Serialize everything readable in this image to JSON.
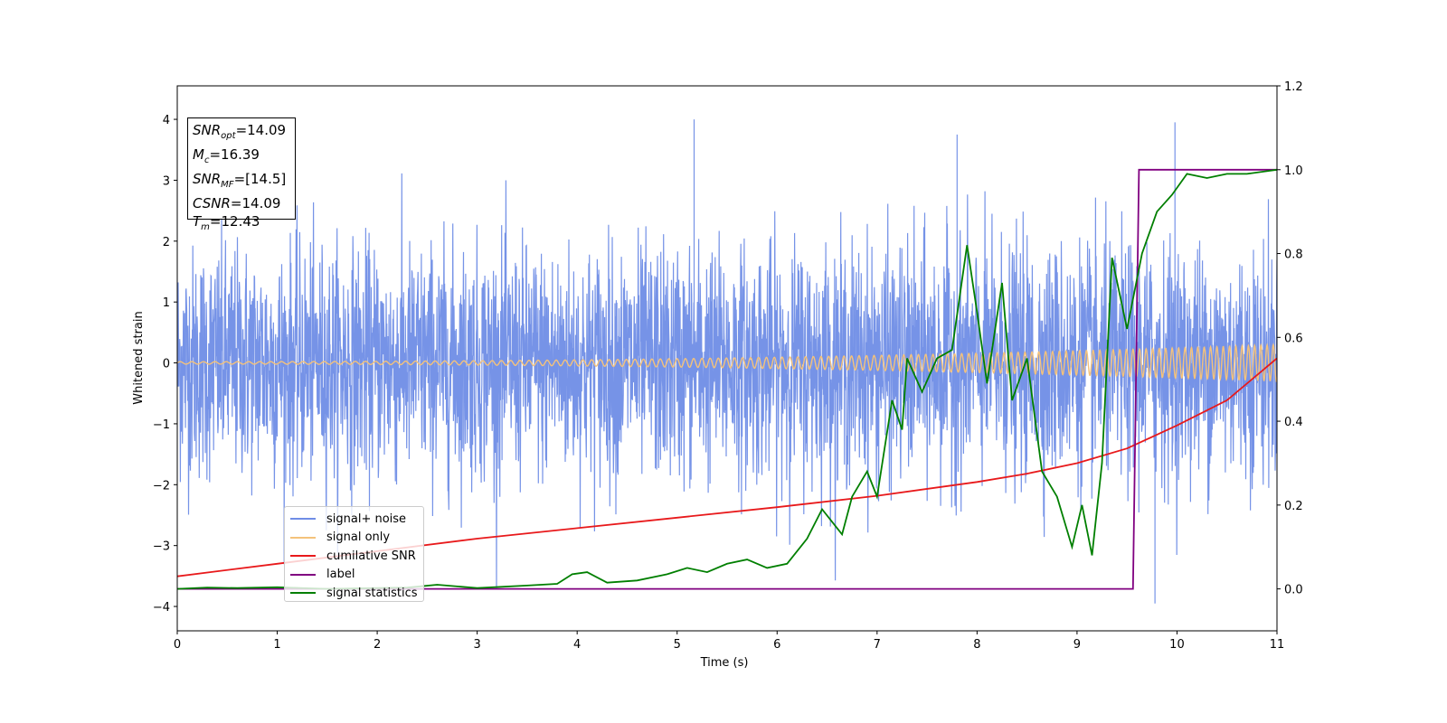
{
  "info_box": {
    "snr_opt": {
      "symbol": "SNR",
      "sub": "opt",
      "value": "=14.09"
    },
    "mc": {
      "symbol": "M",
      "sub": "c",
      "value": "=16.39"
    },
    "snr_mf": {
      "symbol": "SNR",
      "sub": "MF",
      "value": "=[14.5]"
    },
    "csnr": {
      "symbol": "CSNR",
      "value": "=14.09"
    },
    "tm": {
      "symbol": "T",
      "sub": "m",
      "value": "=12.43"
    }
  },
  "chart_data": {
    "type": "line",
    "title": "",
    "xlabel": "Time (s)",
    "ylabel": "Whitened strain",
    "y2label": "",
    "xlim": [
      0,
      11
    ],
    "ylim": [
      -4.4,
      4.55
    ],
    "y2lim": [
      -0.1,
      1.2
    ],
    "xticks": [
      "0",
      "1",
      "2",
      "3",
      "4",
      "5",
      "6",
      "7",
      "8",
      "9",
      "10",
      "11"
    ],
    "yticks": [
      "−4",
      "−3",
      "−2",
      "−1",
      "0",
      "1",
      "2",
      "3",
      "4"
    ],
    "y2ticks": [
      "0.0",
      "0.2",
      "0.4",
      "0.6",
      "0.8",
      "1.0",
      "1.2"
    ],
    "grid": false,
    "legend_position": "lower-left",
    "series": [
      {
        "name": "signal+ noise",
        "color": "#6f8de6",
        "axis": "left",
        "description_values": {
          "noise_std": 0.95,
          "max": 4.0,
          "min": -3.95,
          "spike_times": [
            5.17,
            7.8,
            9.98
          ]
        }
      },
      {
        "name": "signal only",
        "color": "#f4c27b",
        "axis": "left",
        "description_values": {
          "amplitude_start": 0.02,
          "amplitude_end": 0.3,
          "chirp": true
        }
      },
      {
        "name": "cumilative SNR",
        "color": "#e8191b",
        "axis": "right",
        "x": [
          0,
          1,
          2,
          3,
          4,
          5,
          6,
          7,
          8,
          8.5,
          9,
          9.5,
          10,
          10.5,
          11
        ],
        "y": [
          0.03,
          0.06,
          0.09,
          0.12,
          0.145,
          0.17,
          0.195,
          0.222,
          0.255,
          0.275,
          0.3,
          0.335,
          0.39,
          0.45,
          0.55
        ]
      },
      {
        "name": "label",
        "color": "#800080",
        "axis": "right",
        "x": [
          0,
          9.56,
          9.62,
          11
        ],
        "y": [
          0.0,
          0.0,
          1.0,
          1.0
        ]
      },
      {
        "name": "signal statistics",
        "color": "#007f00",
        "axis": "right",
        "x": [
          0,
          0.3,
          0.6,
          1.0,
          1.5,
          2.0,
          2.3,
          2.6,
          3.0,
          3.5,
          3.8,
          3.95,
          4.1,
          4.3,
          4.6,
          4.9,
          5.1,
          5.3,
          5.5,
          5.7,
          5.9,
          6.1,
          6.3,
          6.45,
          6.55,
          6.65,
          6.75,
          6.9,
          7.0,
          7.15,
          7.25,
          7.3,
          7.45,
          7.6,
          7.75,
          7.9,
          8.0,
          8.1,
          8.25,
          8.35,
          8.5,
          8.65,
          8.8,
          8.95,
          9.05,
          9.15,
          9.25,
          9.35,
          9.5,
          9.65,
          9.8,
          9.95,
          10.1,
          10.3,
          10.5,
          10.7,
          11.0
        ],
        "y": [
          0.0,
          0.003,
          0.002,
          0.004,
          0.0,
          0.002,
          0.003,
          0.01,
          0.002,
          0.008,
          0.012,
          0.035,
          0.04,
          0.015,
          0.02,
          0.035,
          0.05,
          0.04,
          0.06,
          0.07,
          0.05,
          0.06,
          0.12,
          0.19,
          0.16,
          0.13,
          0.22,
          0.28,
          0.22,
          0.45,
          0.38,
          0.55,
          0.47,
          0.55,
          0.57,
          0.82,
          0.66,
          0.49,
          0.73,
          0.45,
          0.55,
          0.28,
          0.22,
          0.1,
          0.2,
          0.08,
          0.3,
          0.79,
          0.62,
          0.8,
          0.9,
          0.94,
          0.99,
          0.98,
          0.99,
          0.99,
          1.0
        ]
      }
    ]
  }
}
